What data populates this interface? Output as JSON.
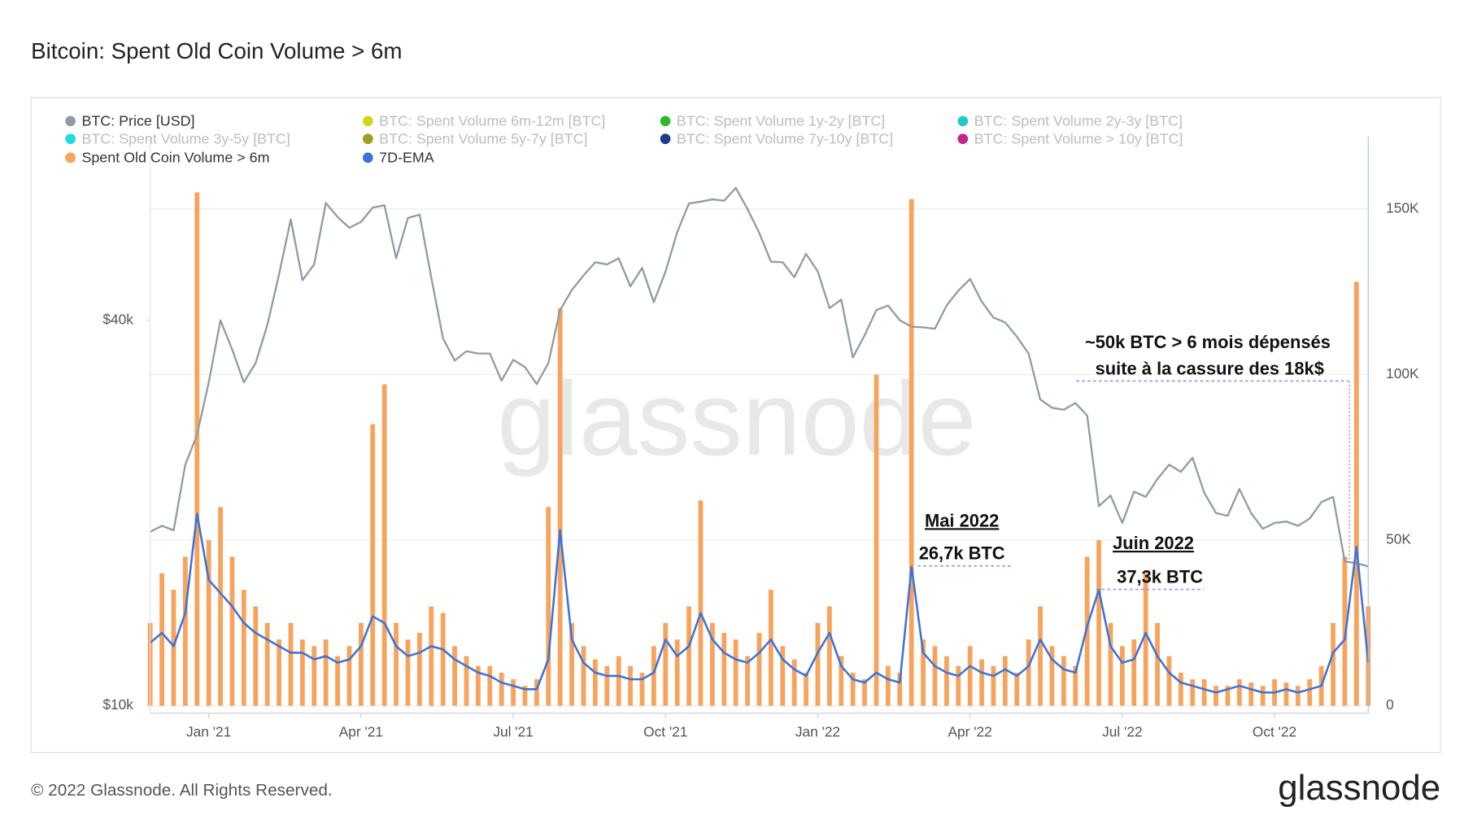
{
  "chart_data": {
    "type": "combo",
    "title": "Bitcoin: Spent Old Coin Volume > 6m",
    "watermark": "glassnode",
    "credit": "© 2022 Glassnode. All Rights Reserved.",
    "brand": "glassnode",
    "categories": [
      null,
      null,
      null,
      null,
      null,
      "Jan '21",
      null,
      null,
      null,
      null,
      null,
      null,
      null,
      null,
      null,
      null,
      null,
      null,
      "Apr '21",
      null,
      null,
      null,
      null,
      null,
      null,
      null,
      null,
      null,
      null,
      null,
      null,
      "Jul '21",
      null,
      null,
      null,
      null,
      null,
      null,
      null,
      null,
      null,
      null,
      null,
      null,
      "Oct '21",
      null,
      null,
      null,
      null,
      null,
      null,
      null,
      null,
      null,
      null,
      null,
      null,
      "Jan '22",
      null,
      null,
      null,
      null,
      null,
      null,
      null,
      null,
      null,
      null,
      null,
      null,
      "Apr '22",
      null,
      null,
      null,
      null,
      null,
      null,
      null,
      null,
      null,
      null,
      null,
      null,
      "Jul '22",
      null,
      null,
      null,
      null,
      null,
      null,
      null,
      null,
      null,
      null,
      null,
      null,
      "Oct '22",
      null,
      null,
      null,
      null,
      null,
      null,
      null,
      null
    ],
    "ylim": [
      10000,
      77600
    ],
    "log": true,
    "yticks": [
      {
        "value": 10000,
        "label": "$10k"
      },
      {
        "value": 40000,
        "label": "$40k"
      }
    ],
    "y2lim": [
      0,
      172000
    ],
    "y2ticks": [
      0,
      {
        "value": 50000,
        "label": "50K"
      },
      {
        "value": 100000,
        "label": "100K"
      },
      {
        "value": 150000,
        "label": "150K"
      }
    ],
    "grid": true,
    "series": [
      {
        "name": "BTC: Price [USD]",
        "color": "#8f9ca3",
        "kind": "line",
        "axis": "y",
        "visible": true,
        "values": [
          18700,
          19100,
          18800,
          23800,
          26500,
          32000,
          40000,
          36000,
          32000,
          34300,
          39300,
          47200,
          57500,
          46200,
          48900,
          61000,
          58000,
          55800,
          57000,
          60000,
          60500,
          50000,
          57800,
          58500,
          46700,
          37500,
          34600,
          35800,
          35500,
          35500,
          32200,
          34700,
          33800,
          31800,
          34300,
          41500,
          44600,
          47000,
          49300,
          48900,
          50000,
          45200,
          48300,
          42700,
          47700,
          54900,
          60900,
          61300,
          61800,
          61500,
          64400,
          59700,
          54800,
          49400,
          49300,
          46700,
          50800,
          47700,
          41800,
          43100,
          35000,
          37900,
          41500,
          42200,
          40000,
          39100,
          39000,
          38800,
          42200,
          44500,
          46400,
          42800,
          40400,
          39700,
          37700,
          35500,
          30100,
          29200,
          29000,
          29700,
          28400,
          20500,
          21300,
          19300,
          21600,
          21200,
          22600,
          23800,
          23200,
          24400,
          21500,
          20000,
          19800,
          21800,
          20000,
          18900,
          19300,
          19400,
          19100,
          19600,
          20800,
          21200,
          16800,
          16700,
          16500
        ]
      },
      {
        "name": "BTC: Spent Volume 6m-12m [BTC]",
        "color": "#d4d41c",
        "visible": false
      },
      {
        "name": "BTC: Spent Volume 1y-2y [BTC]",
        "color": "#2eb82e",
        "visible": false
      },
      {
        "name": "BTC: Spent Volume 2y-3y [BTC]",
        "color": "#26c6cf",
        "visible": false
      },
      {
        "name": "BTC: Spent Volume 3y-5y [BTC]",
        "color": "#22d8e6",
        "visible": false
      },
      {
        "name": "BTC: Spent Volume 5y-7y [BTC]",
        "color": "#a39c22",
        "visible": false
      },
      {
        "name": "BTC: Spent Volume 7y-10y [BTC]",
        "color": "#1f3a8a",
        "visible": false
      },
      {
        "name": "BTC: Spent Volume > 10y [BTC]",
        "color": "#c4258f",
        "visible": false
      },
      {
        "name": "Spent Old Coin Volume > 6m",
        "color": "#f7a35c",
        "kind": "bar",
        "axis": "y2",
        "visible": true,
        "values": [
          25000,
          40000,
          35000,
          45000,
          155000,
          50000,
          60000,
          45000,
          35000,
          30000,
          25000,
          20000,
          25000,
          20000,
          18000,
          20000,
          15000,
          18000,
          25000,
          85000,
          97000,
          25000,
          20000,
          22000,
          30000,
          28000,
          18000,
          15000,
          12000,
          12000,
          10000,
          8000,
          6000,
          8000,
          60000,
          120000,
          25000,
          18000,
          14000,
          12000,
          15000,
          12000,
          10000,
          18000,
          25000,
          20000,
          30000,
          62000,
          25000,
          22000,
          20000,
          15000,
          22000,
          35000,
          18000,
          14000,
          10000,
          25000,
          30000,
          15000,
          10000,
          8000,
          100000,
          12000,
          10000,
          153000,
          20000,
          18000,
          15000,
          12000,
          18000,
          14000,
          12000,
          15000,
          10000,
          20000,
          30000,
          18000,
          15000,
          12000,
          45000,
          50000,
          25000,
          18000,
          20000,
          40000,
          25000,
          15000,
          10000,
          8000,
          8000,
          6000,
          6000,
          8000,
          7000,
          6000,
          8000,
          7000,
          6000,
          8000,
          12000,
          25000,
          45000,
          128000,
          30000
        ]
      },
      {
        "name": "7D-EMA",
        "color": "#3b73d9",
        "kind": "line",
        "axis": "y2",
        "visible": true,
        "values": [
          19000,
          22000,
          18000,
          28000,
          58000,
          38000,
          34000,
          30000,
          25000,
          22000,
          20000,
          18000,
          16000,
          16000,
          14000,
          15000,
          13000,
          14000,
          18000,
          27000,
          25000,
          18000,
          15000,
          16000,
          18000,
          17000,
          14000,
          12000,
          10000,
          9000,
          7000,
          6000,
          5000,
          5000,
          14000,
          53000,
          20000,
          13000,
          10000,
          9000,
          9000,
          8000,
          8000,
          10000,
          20000,
          15000,
          18000,
          28000,
          20000,
          16000,
          14000,
          13000,
          16000,
          20000,
          14000,
          11000,
          9000,
          16000,
          22000,
          12000,
          8000,
          7000,
          10000,
          8000,
          7000,
          42000,
          16000,
          12000,
          10000,
          9000,
          12000,
          10000,
          9000,
          11000,
          9000,
          12000,
          20000,
          14000,
          11000,
          10000,
          24000,
          35000,
          18000,
          13000,
          14000,
          22000,
          15000,
          10000,
          7000,
          6000,
          5000,
          4000,
          5000,
          6000,
          5000,
          4000,
          4000,
          5000,
          4000,
          5000,
          6000,
          16000,
          20000,
          48000,
          13000
        ]
      }
    ],
    "annotations": [
      "~50k BTC > 6 mois dépensés",
      "suite à la cassure des 18k$",
      "Mai 2022",
      "26,7k BTC",
      "Juin 2022",
      "37,3k BTC"
    ]
  }
}
